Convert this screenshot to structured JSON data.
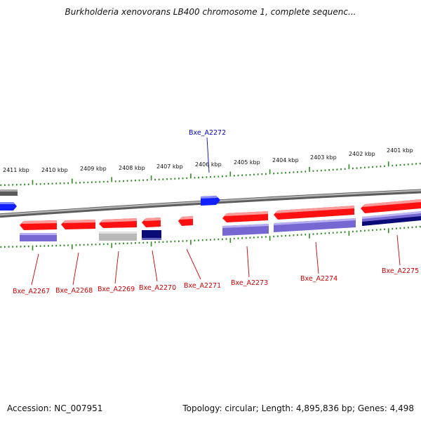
{
  "title": "Burkholderia xenovorans LB400 chromosome 1, complete sequenc...",
  "footer": {
    "accession": "Accession: NC_007951",
    "summary": "Topology: circular; Length: 4,895,836 bp; Genes: 4,498"
  },
  "colors": {
    "backbone": "#8c8c8c",
    "scale_ticks": "#2e8b22",
    "gene_red": "#ff1a1a",
    "gene_blue": "#1a2aff",
    "gene_lavender": "#7b72d6",
    "gene_navy": "#0b0b78",
    "gene_gray": "#b8b8b8",
    "gene_darkgray": "#606060",
    "label_red": "#cc0000",
    "label_blue": "#0000cc"
  },
  "scale_labels": [
    {
      "kbp": 2411,
      "text": "2411 kbp"
    },
    {
      "kbp": 2410,
      "text": "2410 kbp"
    },
    {
      "kbp": 2409,
      "text": "2409 kbp"
    },
    {
      "kbp": 2408,
      "text": "2408 kbp"
    },
    {
      "kbp": 2407,
      "text": "2407 kbp"
    },
    {
      "kbp": 2406,
      "text": "2406 kbp"
    },
    {
      "kbp": 2405,
      "text": "2405 kbp"
    },
    {
      "kbp": 2404,
      "text": "2404 kbp"
    },
    {
      "kbp": 2403,
      "text": "2403 kbp"
    },
    {
      "kbp": 2402,
      "text": "2402 kbp"
    },
    {
      "kbp": 2401,
      "text": "2401 kbp"
    }
  ],
  "gene_labels": [
    {
      "name": "Bxe_A2267",
      "color": "red"
    },
    {
      "name": "Bxe_A2268",
      "color": "red"
    },
    {
      "name": "Bxe_A2269",
      "color": "red"
    },
    {
      "name": "Bxe_A2270",
      "color": "red"
    },
    {
      "name": "Bxe_A2271",
      "color": "red"
    },
    {
      "name": "Bxe_A2272",
      "color": "blue"
    },
    {
      "name": "Bxe_A2273",
      "color": "red"
    },
    {
      "name": "Bxe_A2274",
      "color": "red"
    },
    {
      "name": "Bxe_A2275",
      "color": "red"
    }
  ]
}
